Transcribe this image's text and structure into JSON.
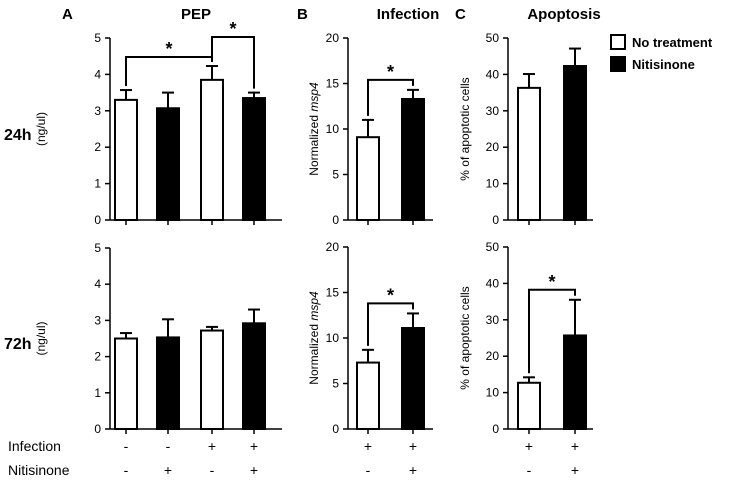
{
  "panel_letters": [
    "A",
    "B",
    "C"
  ],
  "row_labels": [
    "24h",
    "72h"
  ],
  "legend": [
    {
      "label": "No treatment",
      "fill": "#ffffff"
    },
    {
      "label": "Nitisinone",
      "fill": "#000000"
    }
  ],
  "conditions": {
    "rows": [
      {
        "label": "Infection",
        "pep": [
          "-",
          "-",
          "+",
          "+"
        ],
        "pair": [
          "+",
          "+"
        ]
      },
      {
        "label": "Nitisinone",
        "pep": [
          "-",
          "+",
          "-",
          "+"
        ],
        "pair": [
          "-",
          "+"
        ]
      }
    ]
  },
  "colors": {
    "untreated": "#ffffff",
    "treated": "#000000",
    "axis": "#000000"
  },
  "chart_data": [
    {
      "id": "A-24h",
      "type": "bar",
      "title": "PEP",
      "ylabel": "(ng/ul)",
      "ylim": [
        0,
        5
      ],
      "yticks": [
        0,
        1,
        2,
        3,
        4,
        5
      ],
      "values": [
        3.3,
        3.07,
        3.85,
        3.35
      ],
      "errors": [
        0.27,
        0.43,
        0.38,
        0.15
      ],
      "fills": [
        "white",
        "black",
        "white",
        "black"
      ],
      "significance": [
        {
          "pair": [
            0,
            2
          ],
          "label": "*"
        },
        {
          "pair": [
            2,
            3
          ],
          "label": "*"
        }
      ]
    },
    {
      "id": "A-72h",
      "type": "bar",
      "title": "",
      "ylabel": "(ng/ul)",
      "ylim": [
        0,
        5
      ],
      "yticks": [
        0,
        1,
        2,
        3,
        4,
        5
      ],
      "values": [
        2.5,
        2.53,
        2.72,
        2.92
      ],
      "errors": [
        0.15,
        0.5,
        0.1,
        0.38
      ],
      "fills": [
        "white",
        "black",
        "white",
        "black"
      ],
      "significance": []
    },
    {
      "id": "B-24h",
      "type": "bar",
      "title": "Infection",
      "ylabel_prefix": "Normalized ",
      "ylabel_italic": "msp4",
      "ylim": [
        0,
        20
      ],
      "yticks": [
        0,
        5,
        10,
        15,
        20
      ],
      "values": [
        9.1,
        13.3
      ],
      "errors": [
        1.9,
        1.0
      ],
      "fills": [
        "white",
        "black"
      ],
      "significance": [
        {
          "pair": [
            0,
            1
          ],
          "label": "*"
        }
      ]
    },
    {
      "id": "B-72h",
      "type": "bar",
      "title": "",
      "ylabel_prefix": "Normalized ",
      "ylabel_italic": "msp4",
      "ylim": [
        0,
        20
      ],
      "yticks": [
        0,
        5,
        10,
        15,
        20
      ],
      "values": [
        7.3,
        11.1
      ],
      "errors": [
        1.4,
        1.6
      ],
      "fills": [
        "white",
        "black"
      ],
      "significance": [
        {
          "pair": [
            0,
            1
          ],
          "label": "*"
        }
      ]
    },
    {
      "id": "C-24h",
      "type": "bar",
      "title": "Apoptosis",
      "ylabel": "% of apoptotic cells",
      "ylim": [
        0,
        50
      ],
      "yticks": [
        0,
        10,
        20,
        30,
        40,
        50
      ],
      "values": [
        36.3,
        42.3
      ],
      "errors": [
        3.8,
        4.8
      ],
      "fills": [
        "white",
        "black"
      ],
      "significance": []
    },
    {
      "id": "C-72h",
      "type": "bar",
      "title": "",
      "ylabel": "% of apoptotic cells",
      "ylim": [
        0,
        50
      ],
      "yticks": [
        0,
        10,
        20,
        30,
        40,
        50
      ],
      "values": [
        12.7,
        25.7
      ],
      "errors": [
        1.5,
        9.8
      ],
      "fills": [
        "white",
        "black"
      ],
      "significance": [
        {
          "pair": [
            0,
            1
          ],
          "label": "*"
        }
      ]
    }
  ]
}
